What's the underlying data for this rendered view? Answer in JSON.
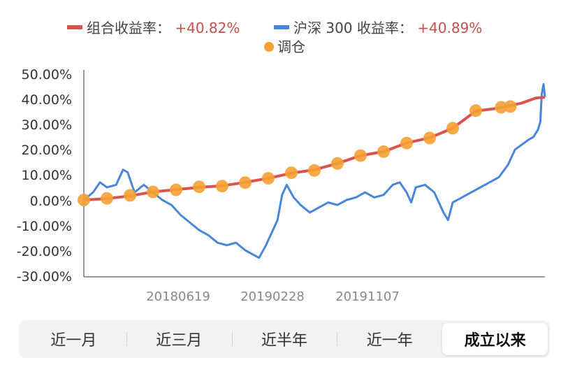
{
  "chart_data": {
    "type": "line",
    "y_tick_labels": [
      "50.00%",
      "40.00%",
      "30.00%",
      "20.00%",
      "10.00%",
      "0.00%",
      "-10.00%",
      "-20.00%",
      "-30.00%"
    ],
    "ylim": [
      -30,
      50
    ],
    "x_tick_labels": [
      "20180619",
      "20190228",
      "20191107"
    ],
    "legend": {
      "items": [
        {
          "label": "组合收益率：",
          "value": "+40.82%",
          "color": "#d9534f"
        },
        {
          "label": "沪深 300 收益率：",
          "value": "+40.89%",
          "color": "#4a86d8"
        },
        {
          "label": "调仓",
          "value": "",
          "color": "#f5a033"
        }
      ]
    },
    "series": [
      {
        "name": "组合收益率",
        "color": "#d9534f",
        "points": [
          [
            0.0,
            0.0
          ],
          [
            0.05,
            0.5
          ],
          [
            0.1,
            1.6
          ],
          [
            0.15,
            3.2
          ],
          [
            0.2,
            4.1
          ],
          [
            0.25,
            5.0
          ],
          [
            0.3,
            5.6
          ],
          [
            0.35,
            7.0
          ],
          [
            0.4,
            8.6
          ],
          [
            0.45,
            10.6
          ],
          [
            0.5,
            12.0
          ],
          [
            0.55,
            14.5
          ],
          [
            0.6,
            17.6
          ],
          [
            0.65,
            19.2
          ],
          [
            0.7,
            22.6
          ],
          [
            0.75,
            24.7
          ],
          [
            0.8,
            28.5
          ],
          [
            0.85,
            35.3
          ],
          [
            0.9,
            36.5
          ],
          [
            0.95,
            38.5
          ],
          [
            0.98,
            40.5
          ],
          [
            1.0,
            40.82
          ]
        ]
      },
      {
        "name": "沪深300收益率",
        "color": "#4a86d8",
        "points": [
          [
            0.0,
            0.0
          ],
          [
            0.02,
            3.0
          ],
          [
            0.035,
            7.0
          ],
          [
            0.05,
            5.0
          ],
          [
            0.07,
            6.0
          ],
          [
            0.085,
            12.0
          ],
          [
            0.095,
            11.0
          ],
          [
            0.11,
            3.0
          ],
          [
            0.13,
            6.0
          ],
          [
            0.15,
            3.0
          ],
          [
            0.17,
            0.0
          ],
          [
            0.19,
            -2.0
          ],
          [
            0.21,
            -6.0
          ],
          [
            0.23,
            -9.0
          ],
          [
            0.25,
            -12.0
          ],
          [
            0.27,
            -14.0
          ],
          [
            0.29,
            -17.0
          ],
          [
            0.31,
            -18.0
          ],
          [
            0.33,
            -17.0
          ],
          [
            0.35,
            -20.0
          ],
          [
            0.37,
            -22.0
          ],
          [
            0.38,
            -23.0
          ],
          [
            0.395,
            -18.0
          ],
          [
            0.41,
            -12.0
          ],
          [
            0.42,
            -8.0
          ],
          [
            0.43,
            2.0
          ],
          [
            0.44,
            6.0
          ],
          [
            0.455,
            1.0
          ],
          [
            0.47,
            -2.0
          ],
          [
            0.49,
            -5.0
          ],
          [
            0.51,
            -3.0
          ],
          [
            0.53,
            -1.0
          ],
          [
            0.55,
            -2.0
          ],
          [
            0.57,
            0.0
          ],
          [
            0.59,
            1.0
          ],
          [
            0.61,
            3.0
          ],
          [
            0.63,
            1.0
          ],
          [
            0.65,
            2.0
          ],
          [
            0.67,
            6.0
          ],
          [
            0.685,
            7.0
          ],
          [
            0.7,
            3.0
          ],
          [
            0.71,
            -1.0
          ],
          [
            0.72,
            5.0
          ],
          [
            0.74,
            6.0
          ],
          [
            0.76,
            3.0
          ],
          [
            0.78,
            -5.0
          ],
          [
            0.79,
            -8.0
          ],
          [
            0.8,
            -1.0
          ],
          [
            0.82,
            1.0
          ],
          [
            0.84,
            3.0
          ],
          [
            0.86,
            5.0
          ],
          [
            0.88,
            7.0
          ],
          [
            0.9,
            9.0
          ],
          [
            0.92,
            14.0
          ],
          [
            0.935,
            20.0
          ],
          [
            0.95,
            22.0
          ],
          [
            0.965,
            24.0
          ],
          [
            0.975,
            25.0
          ],
          [
            0.985,
            28.0
          ],
          [
            0.99,
            31.0
          ],
          [
            0.993,
            42.0
          ],
          [
            0.997,
            46.0
          ],
          [
            1.0,
            40.89
          ]
        ]
      }
    ],
    "rebalance_points": [
      [
        0.0,
        0.0
      ],
      [
        0.05,
        0.6
      ],
      [
        0.1,
        1.8
      ],
      [
        0.15,
        3.2
      ],
      [
        0.2,
        4.0
      ],
      [
        0.25,
        5.2
      ],
      [
        0.3,
        5.5
      ],
      [
        0.35,
        6.9
      ],
      [
        0.4,
        8.6
      ],
      [
        0.45,
        10.8
      ],
      [
        0.5,
        11.7
      ],
      [
        0.55,
        14.5
      ],
      [
        0.6,
        17.6
      ],
      [
        0.65,
        19.2
      ],
      [
        0.7,
        22.6
      ],
      [
        0.75,
        24.6
      ],
      [
        0.8,
        28.5
      ],
      [
        0.85,
        35.5
      ],
      [
        0.905,
        36.8
      ],
      [
        0.925,
        37.1
      ]
    ]
  },
  "period_tabs": [
    {
      "label": "近一月",
      "active": false
    },
    {
      "label": "近三月",
      "active": false
    },
    {
      "label": "近半年",
      "active": false
    },
    {
      "label": "近一年",
      "active": false
    },
    {
      "label": "成立以来",
      "active": true
    }
  ]
}
